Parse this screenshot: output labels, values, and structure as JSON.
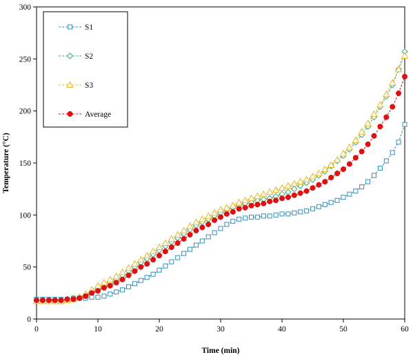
{
  "chart_data": {
    "type": "line",
    "title": "",
    "xlabel": "Time (min)",
    "ylabel": "Temperature  (°C)",
    "xlim": [
      0,
      60
    ],
    "ylim": [
      0,
      300
    ],
    "xticks": [
      0,
      10,
      20,
      30,
      40,
      50,
      60
    ],
    "yticks": [
      0,
      50,
      100,
      150,
      200,
      250,
      300
    ],
    "grid": false,
    "legend_position": "top-left",
    "x": [
      0,
      1,
      2,
      3,
      4,
      5,
      6,
      7,
      8,
      9,
      10,
      11,
      12,
      13,
      14,
      15,
      16,
      17,
      18,
      19,
      20,
      21,
      22,
      23,
      24,
      25,
      26,
      27,
      28,
      29,
      30,
      31,
      32,
      33,
      34,
      35,
      36,
      37,
      38,
      39,
      40,
      41,
      42,
      43,
      44,
      45,
      46,
      47,
      48,
      49,
      50,
      51,
      52,
      53,
      54,
      55,
      56,
      57,
      58,
      59,
      60
    ],
    "series": [
      {
        "name": "S1",
        "color": "#2e8fbf",
        "marker": "square",
        "values": [
          19,
          19,
          19,
          19,
          19,
          19,
          20,
          20,
          20,
          21,
          21,
          22,
          24,
          26,
          28,
          31,
          34,
          37,
          40,
          43,
          47,
          51,
          55,
          59,
          63,
          67,
          71,
          75,
          79,
          83,
          87,
          91,
          94,
          96,
          97,
          98,
          98,
          99,
          99,
          100,
          101,
          101,
          102,
          103,
          104,
          106,
          108,
          110,
          112,
          114,
          117,
          120,
          123,
          127,
          132,
          138,
          145,
          152,
          160,
          170,
          187
        ]
      },
      {
        "name": "S2",
        "color": "#3aa879",
        "marker": "diamond",
        "values": [
          18,
          18,
          18,
          18,
          18,
          19,
          20,
          21,
          23,
          26,
          29,
          32,
          35,
          38,
          42,
          46,
          50,
          54,
          58,
          62,
          66,
          70,
          74,
          78,
          82,
          86,
          90,
          93,
          96,
          99,
          102,
          105,
          107,
          109,
          111,
          112,
          114,
          115,
          116,
          118,
          120,
          122,
          125,
          128,
          131,
          134,
          138,
          142,
          147,
          152,
          157,
          163,
          170,
          177,
          185,
          194,
          204,
          214,
          225,
          240,
          257
        ]
      },
      {
        "name": "S3",
        "color": "#e6b820",
        "marker": "triangle",
        "values": [
          17,
          17,
          17,
          17,
          17,
          18,
          19,
          21,
          24,
          28,
          32,
          35,
          38,
          41,
          45,
          49,
          53,
          57,
          61,
          65,
          69,
          73,
          77,
          81,
          85,
          89,
          93,
          96,
          99,
          102,
          105,
          107,
          109,
          112,
          114,
          116,
          118,
          120,
          122,
          124,
          126,
          128,
          130,
          132,
          134,
          137,
          140,
          144,
          148,
          153,
          159,
          165,
          172,
          180,
          188,
          197,
          206,
          216,
          227,
          240,
          253
        ]
      },
      {
        "name": "Average",
        "color": "#dd1111",
        "marker": "circle",
        "values": [
          18,
          18,
          18,
          18,
          18,
          19,
          19,
          20,
          22,
          25,
          27,
          30,
          32,
          35,
          38,
          42,
          46,
          50,
          53,
          57,
          61,
          65,
          69,
          73,
          77,
          81,
          85,
          88,
          91,
          95,
          98,
          101,
          103,
          106,
          107,
          109,
          110,
          111,
          113,
          114,
          116,
          117,
          119,
          121,
          123,
          126,
          129,
          132,
          136,
          140,
          144,
          149,
          155,
          161,
          168,
          176,
          185,
          194,
          204,
          217,
          233
        ]
      }
    ]
  }
}
